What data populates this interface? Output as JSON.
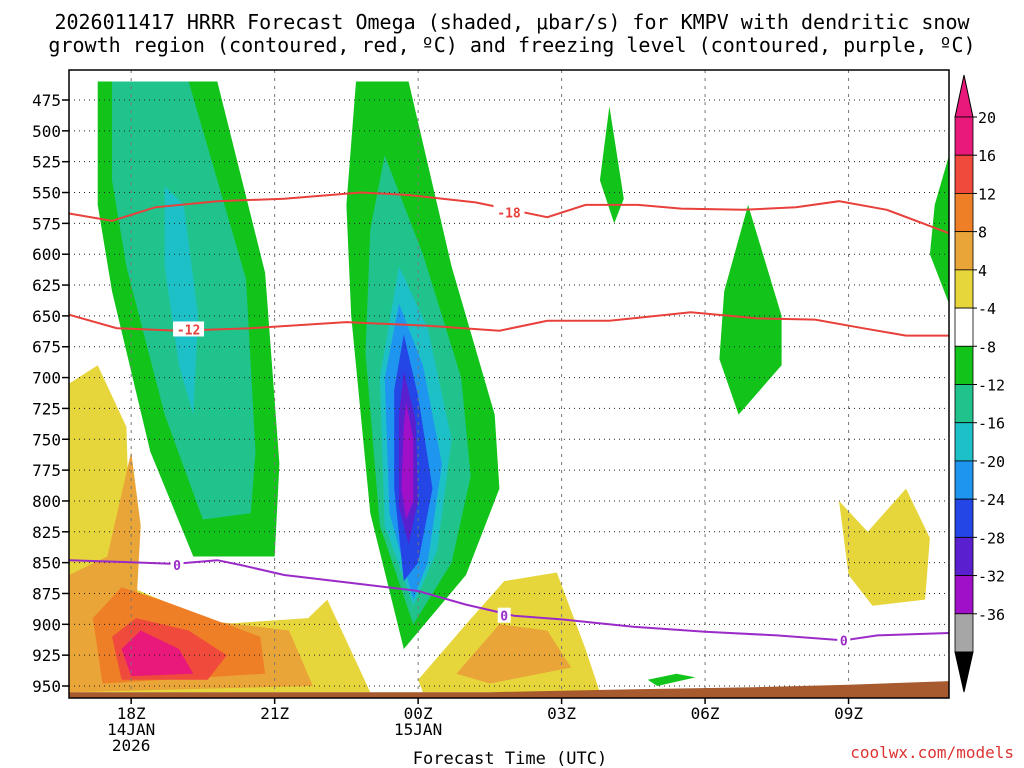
{
  "title_line1": "2026011417 HRRR Forecast Omega (shaded, μbar/s) for KMPV with dendritic snow",
  "title_line2": "growth region (contoured, red, ºC) and freezing level (contoured, purple, ºC)",
  "credit": "coolwx.com/models",
  "chart_data": {
    "type": "time-height cross section (filled contour)",
    "title": "2026011417 HRRR Forecast Omega (shaded, μbar/s) for KMPV with dendritic snow growth region (contoured, red, ºC) and freezing level (contoured, purple, ºC)",
    "xlabel": "Forecast Time (UTC)",
    "ylabel": "",
    "x_range_hours": [
      16.7,
      35.1
    ],
    "y_range_hPa": [
      460,
      960
    ],
    "y_ticks": [
      475,
      500,
      525,
      550,
      575,
      600,
      625,
      650,
      675,
      700,
      725,
      750,
      775,
      800,
      825,
      850,
      875,
      900,
      925,
      950
    ],
    "x_ticks": [
      {
        "hour": 18,
        "lines": [
          "18Z",
          "14JAN",
          "2026"
        ]
      },
      {
        "hour": 21,
        "lines": [
          "21Z"
        ]
      },
      {
        "hour": 24,
        "lines": [
          "00Z",
          "15JAN"
        ]
      },
      {
        "hour": 27,
        "lines": [
          "03Z"
        ]
      },
      {
        "hour": 30,
        "lines": [
          "06Z"
        ]
      },
      {
        "hour": 33,
        "lines": [
          "09Z"
        ]
      }
    ],
    "grid": true,
    "colorbar": {
      "ticks": [
        20,
        16,
        12,
        8,
        4,
        -4,
        -8,
        -12,
        -16,
        -20,
        -24,
        -28,
        -32,
        -36
      ],
      "bands": [
        {
          "lo": 20,
          "hi": 24,
          "color": "#e8197a"
        },
        {
          "lo": 16,
          "hi": 20,
          "color": "#f04a3c"
        },
        {
          "lo": 12,
          "hi": 16,
          "color": "#ef7f26"
        },
        {
          "lo": 8,
          "hi": 12,
          "color": "#e9a538"
        },
        {
          "lo": 4,
          "hi": 8,
          "color": "#e6d63c"
        },
        {
          "lo": -4,
          "hi": 4,
          "color": "#ffffff"
        },
        {
          "lo": -8,
          "hi": -4,
          "color": "#12c41a"
        },
        {
          "lo": -12,
          "hi": -8,
          "color": "#20c38c"
        },
        {
          "lo": -16,
          "hi": -12,
          "color": "#1ec0c8"
        },
        {
          "lo": -20,
          "hi": -16,
          "color": "#1e96f0"
        },
        {
          "lo": -24,
          "hi": -20,
          "color": "#2446e6"
        },
        {
          "lo": -28,
          "hi": -24,
          "color": "#5a20d0"
        },
        {
          "lo": -32,
          "hi": -28,
          "color": "#a010c8"
        },
        {
          "lo": -36,
          "hi": -32,
          "color": "#a6a6a6"
        }
      ]
    },
    "omega_regions": [
      {
        "name": "ascent-plume-west",
        "level": -8,
        "color": "#12c41a",
        "points": [
          [
            17.3,
            460
          ],
          [
            19.8,
            460
          ],
          [
            20.8,
            615
          ],
          [
            21.1,
            770
          ],
          [
            21.0,
            845
          ],
          [
            19.3,
            845
          ],
          [
            18.4,
            760
          ],
          [
            17.6,
            630
          ],
          [
            17.3,
            560
          ]
        ]
      },
      {
        "name": "ascent-plume-west-teal",
        "level": -12,
        "color": "#20c38c",
        "points": [
          [
            17.6,
            460
          ],
          [
            19.2,
            460
          ],
          [
            20.4,
            620
          ],
          [
            20.6,
            760
          ],
          [
            20.5,
            810
          ],
          [
            19.5,
            815
          ],
          [
            18.7,
            730
          ],
          [
            17.9,
            610
          ],
          [
            17.6,
            540
          ]
        ]
      },
      {
        "name": "ascent-plume-west-cyan",
        "level": -16,
        "color": "#1ec0c8",
        "points": [
          [
            18.7,
            545
          ],
          [
            19.1,
            560
          ],
          [
            19.4,
            650
          ],
          [
            19.3,
            730
          ],
          [
            19.0,
            690
          ],
          [
            18.7,
            610
          ]
        ]
      },
      {
        "name": "ascent-plume-central",
        "level": -8,
        "color": "#12c41a",
        "points": [
          [
            22.7,
            460
          ],
          [
            23.8,
            460
          ],
          [
            24.7,
            610
          ],
          [
            25.6,
            730
          ],
          [
            25.7,
            790
          ],
          [
            25.0,
            860
          ],
          [
            23.7,
            920
          ],
          [
            23.0,
            810
          ],
          [
            22.6,
            650
          ],
          [
            22.5,
            560
          ]
        ]
      },
      {
        "name": "ascent-plume-central-teal",
        "level": -12,
        "color": "#20c38c",
        "points": [
          [
            23.3,
            520
          ],
          [
            24.1,
            600
          ],
          [
            24.9,
            700
          ],
          [
            25.1,
            780
          ],
          [
            24.7,
            850
          ],
          [
            23.9,
            900
          ],
          [
            23.2,
            820
          ],
          [
            22.9,
            680
          ],
          [
            23.0,
            580
          ]
        ]
      },
      {
        "name": "ascent-plume-central-cyan",
        "level": -16,
        "color": "#1ec0c8",
        "points": [
          [
            23.6,
            610
          ],
          [
            24.2,
            660
          ],
          [
            24.7,
            750
          ],
          [
            24.4,
            840
          ],
          [
            23.9,
            885
          ],
          [
            23.3,
            820
          ],
          [
            23.2,
            700
          ]
        ]
      },
      {
        "name": "ascent-plume-central-blue",
        "level": -20,
        "color": "#1e96f0",
        "points": [
          [
            23.6,
            640
          ],
          [
            24.1,
            690
          ],
          [
            24.5,
            770
          ],
          [
            24.2,
            850
          ],
          [
            23.9,
            880
          ],
          [
            23.4,
            810
          ],
          [
            23.3,
            700
          ]
        ]
      },
      {
        "name": "ascent-plume-central-darkblue",
        "level": -24,
        "color": "#2446e6",
        "points": [
          [
            23.7,
            665
          ],
          [
            24.0,
            715
          ],
          [
            24.3,
            790
          ],
          [
            24.0,
            850
          ],
          [
            23.7,
            865
          ],
          [
            23.5,
            790
          ],
          [
            23.5,
            710
          ]
        ]
      },
      {
        "name": "ascent-core-central",
        "level": -28,
        "color": "#5a20d0",
        "points": [
          [
            23.7,
            695
          ],
          [
            23.95,
            735
          ],
          [
            24.0,
            800
          ],
          [
            23.8,
            835
          ],
          [
            23.6,
            805
          ],
          [
            23.6,
            730
          ]
        ]
      },
      {
        "name": "ascent-core-central-max",
        "level": -32,
        "color": "#a010c8",
        "points": [
          [
            23.75,
            720
          ],
          [
            23.9,
            750
          ],
          [
            23.9,
            800
          ],
          [
            23.75,
            815
          ],
          [
            23.65,
            790
          ],
          [
            23.7,
            740
          ]
        ]
      },
      {
        "name": "ascent-cell-0330z",
        "level": -8,
        "color": "#12c41a",
        "points": [
          [
            28.0,
            480
          ],
          [
            28.3,
            555
          ],
          [
            28.1,
            575
          ],
          [
            27.8,
            540
          ]
        ]
      },
      {
        "name": "ascent-cell-0650z",
        "level": -8,
        "color": "#12c41a",
        "points": [
          [
            30.9,
            560
          ],
          [
            31.6,
            650
          ],
          [
            31.6,
            690
          ],
          [
            30.7,
            730
          ],
          [
            30.3,
            685
          ],
          [
            30.4,
            630
          ]
        ]
      },
      {
        "name": "ascent-cell-east-edge",
        "level": -8,
        "color": "#12c41a",
        "points": [
          [
            35.1,
            520
          ],
          [
            35.1,
            640
          ],
          [
            34.7,
            600
          ],
          [
            34.8,
            560
          ]
        ]
      },
      {
        "name": "ascent-cell-low",
        "level": -8,
        "color": "#12c41a",
        "points": [
          [
            28.8,
            945
          ],
          [
            29.4,
            940
          ],
          [
            29.8,
            943
          ],
          [
            29.0,
            950
          ]
        ]
      },
      {
        "name": "descent-low-west",
        "level": 4,
        "color": "#e6d63c",
        "points": [
          [
            16.7,
            705
          ],
          [
            17.3,
            690
          ],
          [
            17.9,
            740
          ],
          [
            18.0,
            870
          ],
          [
            19.8,
            900
          ],
          [
            21.7,
            895
          ],
          [
            22.1,
            880
          ],
          [
            23.0,
            955
          ],
          [
            16.7,
            955
          ]
        ]
      },
      {
        "name": "descent-low-west-gold",
        "level": 8,
        "color": "#e9a538",
        "points": [
          [
            16.7,
            860
          ],
          [
            17.5,
            845
          ],
          [
            18.0,
            760
          ],
          [
            18.2,
            820
          ],
          [
            18.1,
            890
          ],
          [
            21.3,
            905
          ],
          [
            21.8,
            950
          ],
          [
            16.7,
            955
          ]
        ]
      },
      {
        "name": "descent-low-west-orange",
        "level": 12,
        "color": "#ef7f26",
        "points": [
          [
            17.2,
            895
          ],
          [
            17.8,
            870
          ],
          [
            18.6,
            880
          ],
          [
            20.7,
            910
          ],
          [
            20.8,
            940
          ],
          [
            17.4,
            948
          ]
        ]
      },
      {
        "name": "descent-low-west-red",
        "level": 16,
        "color": "#f04a3c",
        "points": [
          [
            17.6,
            910
          ],
          [
            18.1,
            895
          ],
          [
            19.2,
            905
          ],
          [
            20.0,
            925
          ],
          [
            19.6,
            945
          ],
          [
            17.8,
            945
          ]
        ]
      },
      {
        "name": "descent-low-west-max",
        "level": 20,
        "color": "#e8197a",
        "points": [
          [
            17.8,
            920
          ],
          [
            18.2,
            905
          ],
          [
            19.0,
            920
          ],
          [
            19.3,
            940
          ],
          [
            18.0,
            942
          ]
        ]
      },
      {
        "name": "descent-low-central",
        "level": 4,
        "color": "#e6d63c",
        "points": [
          [
            24.0,
            945
          ],
          [
            25.0,
            900
          ],
          [
            25.8,
            865
          ],
          [
            26.9,
            858
          ],
          [
            27.5,
            920
          ],
          [
            27.8,
            955
          ],
          [
            24.1,
            955
          ]
        ]
      },
      {
        "name": "descent-low-central-gold",
        "level": 8,
        "color": "#e9a538",
        "points": [
          [
            24.8,
            940
          ],
          [
            25.7,
            900
          ],
          [
            26.7,
            905
          ],
          [
            27.2,
            935
          ],
          [
            25.5,
            948
          ]
        ]
      },
      {
        "name": "descent-low-east",
        "level": 4,
        "color": "#e6d63c",
        "points": [
          [
            32.8,
            800
          ],
          [
            33.4,
            825
          ],
          [
            34.2,
            790
          ],
          [
            34.7,
            830
          ],
          [
            34.6,
            880
          ],
          [
            33.5,
            885
          ],
          [
            33.0,
            860
          ]
        ]
      }
    ],
    "dgz_contours": [
      {
        "value": -18,
        "label": "-18",
        "color": "#e8403a",
        "points": [
          [
            16.7,
            567
          ],
          [
            17.6,
            573
          ],
          [
            18.5,
            562
          ],
          [
            19.8,
            557
          ],
          [
            21.2,
            555
          ],
          [
            22.8,
            550
          ],
          [
            23.8,
            552
          ],
          [
            25.2,
            558
          ],
          [
            26.7,
            570
          ],
          [
            27.5,
            560
          ],
          [
            28.6,
            560
          ],
          [
            29.5,
            563
          ],
          [
            30.8,
            564
          ],
          [
            31.9,
            562
          ],
          [
            32.8,
            557
          ],
          [
            33.8,
            564
          ],
          [
            35.1,
            583
          ]
        ]
      },
      {
        "value": -12,
        "label": "-12",
        "color": "#e8403a",
        "points": [
          [
            16.7,
            649
          ],
          [
            17.7,
            660
          ],
          [
            19.0,
            662
          ],
          [
            20.5,
            660
          ],
          [
            22.5,
            655
          ],
          [
            24.2,
            658
          ],
          [
            25.7,
            662
          ],
          [
            26.7,
            654
          ],
          [
            28.0,
            654
          ],
          [
            29.7,
            647
          ],
          [
            31.1,
            652
          ],
          [
            32.3,
            653
          ],
          [
            33.3,
            660
          ],
          [
            34.2,
            666
          ],
          [
            35.1,
            666
          ]
        ]
      }
    ],
    "freezing_level": {
      "value": 0,
      "label": "0",
      "color": "#9b2bc8",
      "points": [
        [
          16.7,
          848
        ],
        [
          18.2,
          850
        ],
        [
          18.9,
          851
        ],
        [
          19.8,
          848
        ],
        [
          20.3,
          852
        ],
        [
          21.2,
          860
        ],
        [
          22.5,
          866
        ],
        [
          24.0,
          873
        ],
        [
          25.0,
          884
        ],
        [
          26.0,
          893
        ],
        [
          27.0,
          896
        ],
        [
          28.5,
          902
        ],
        [
          30.0,
          906
        ],
        [
          31.5,
          909
        ],
        [
          32.9,
          913
        ],
        [
          33.6,
          909
        ],
        [
          35.1,
          907
        ]
      ]
    },
    "contour_labels": [
      {
        "text": "-18",
        "x_hour": 25.9,
        "p_hPa": 566,
        "color": "#e8403a"
      },
      {
        "text": "-12",
        "x_hour": 19.2,
        "p_hPa": 661,
        "color": "#e8403a"
      },
      {
        "text": "0",
        "x_hour": 18.96,
        "p_hPa": 852,
        "color": "#9b2bc8"
      },
      {
        "text": "0",
        "x_hour": 25.8,
        "p_hPa": 893,
        "color": "#9b2bc8"
      },
      {
        "text": "0",
        "x_hour": 32.9,
        "p_hPa": 913,
        "color": "#9b2bc8"
      }
    ],
    "terrain": {
      "color": "#a65a2e",
      "points": [
        [
          16.7,
          955
        ],
        [
          25.5,
          955
        ],
        [
          28.0,
          953
        ],
        [
          31.0,
          951
        ],
        [
          33.0,
          949
        ],
        [
          35.1,
          946
        ],
        [
          35.1,
          962
        ],
        [
          16.7,
          962
        ]
      ]
    }
  }
}
